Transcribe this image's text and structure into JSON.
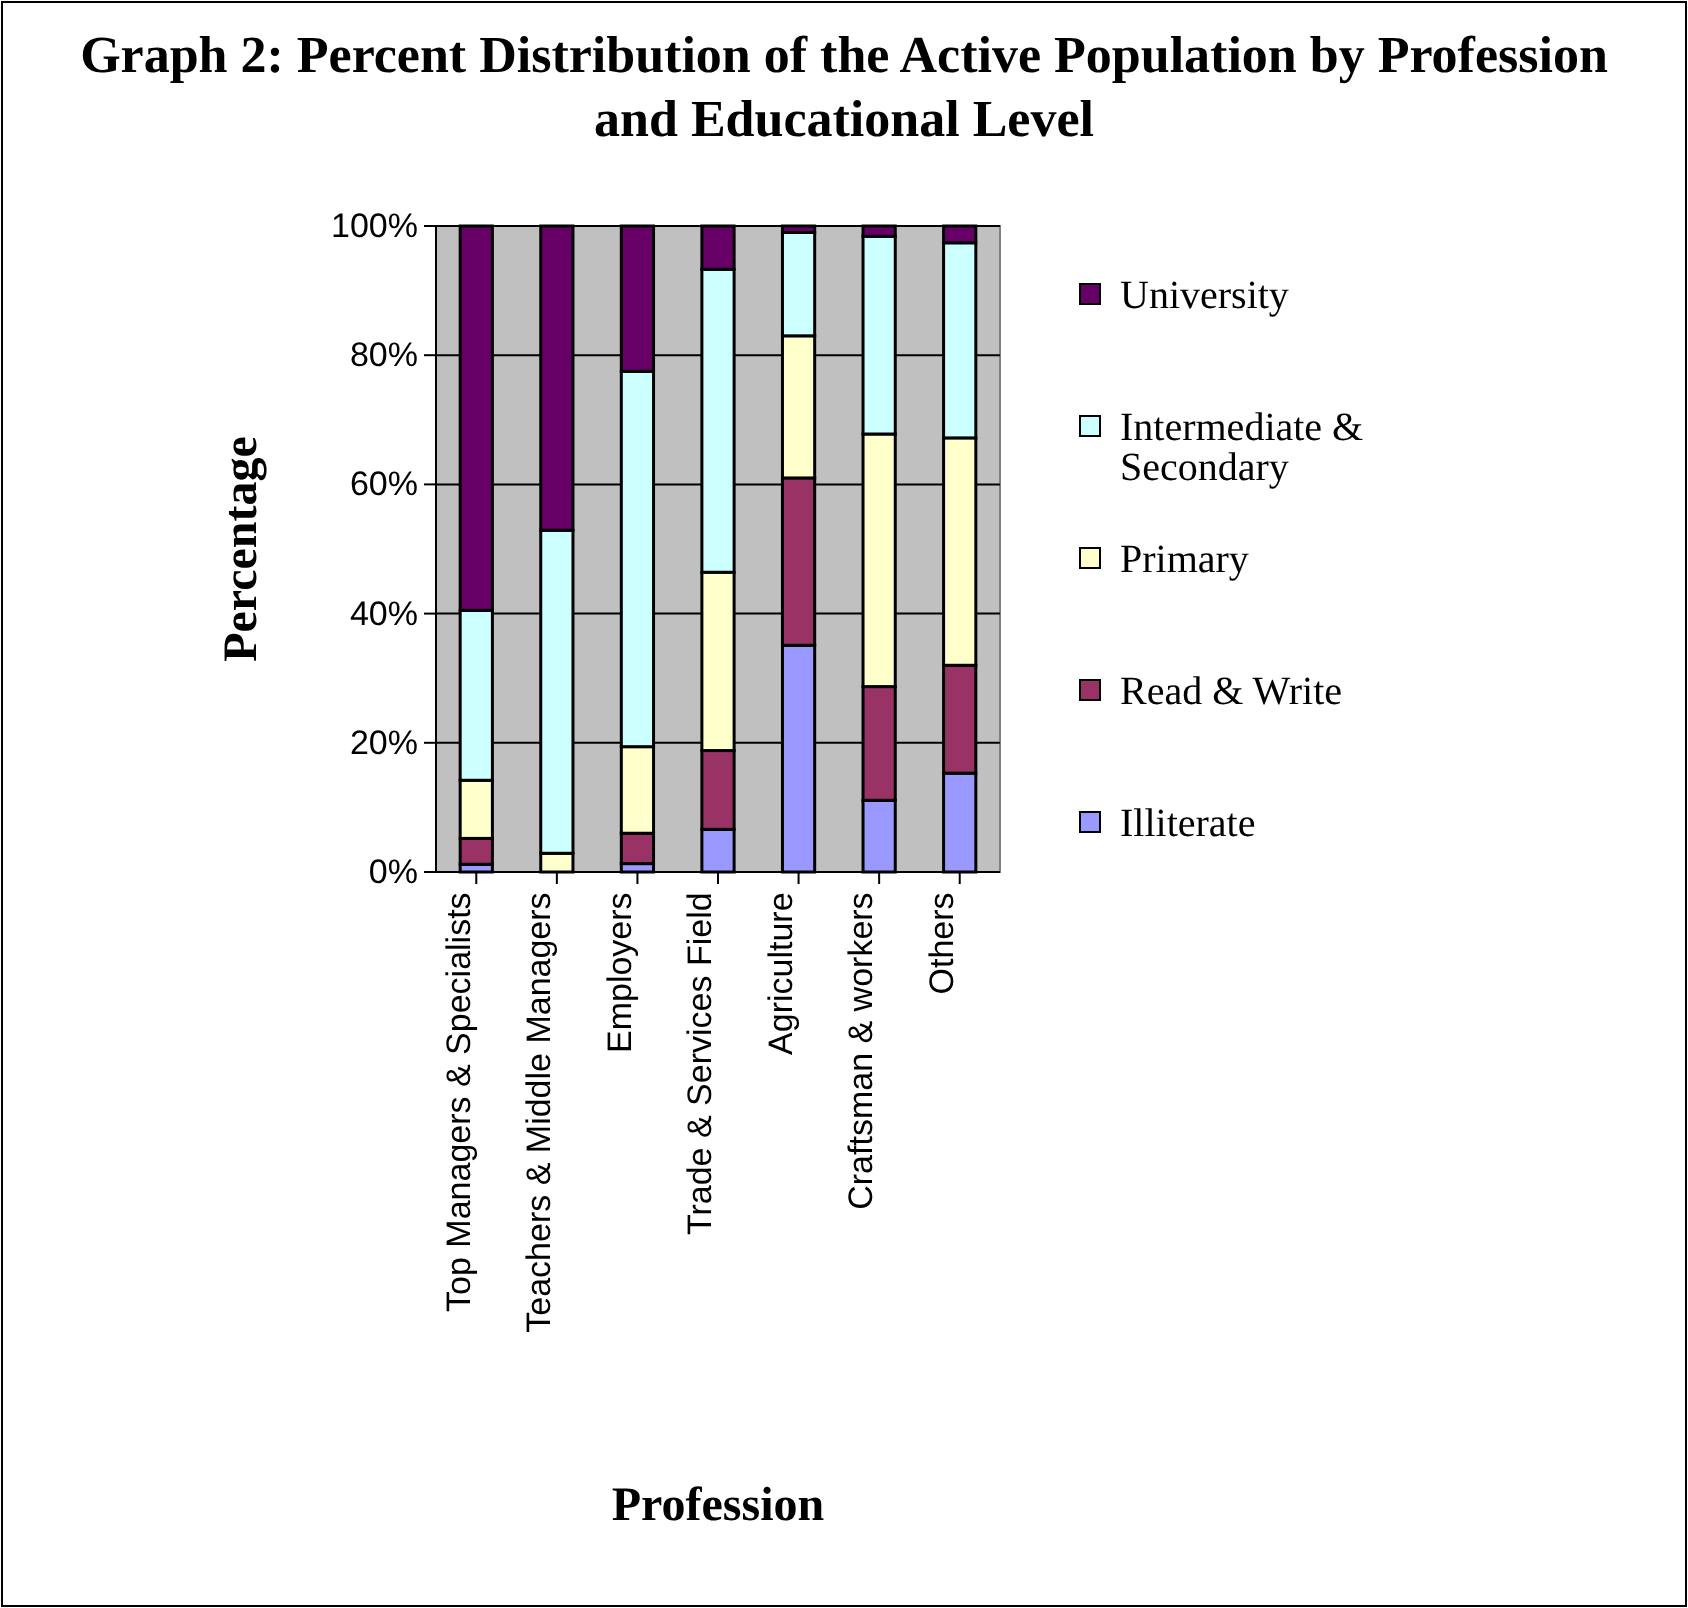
{
  "chart_data": {
    "type": "bar",
    "stacked": true,
    "title": "Graph 2: Percent Distribution of the Active Population by Profession and Educational Level",
    "xlabel": "Profession",
    "ylabel": "Percentage",
    "categories": [
      "Top Managers & Specialists",
      "Teachers & Middle Managers",
      "Employers",
      "Trade & Services Field",
      "Agriculture",
      "Craftsman & workers",
      "Others"
    ],
    "series": [
      {
        "name": "Illiterate",
        "color": "#9999ff",
        "values": [
          1.2,
          0,
          1.3,
          6.6,
          35.1,
          11.1,
          15.3
        ]
      },
      {
        "name": "Read & Write",
        "color": "#993366",
        "values": [
          4,
          0,
          4.7,
          12.2,
          25.9,
          17.6,
          16.7
        ]
      },
      {
        "name": "Primary",
        "color": "#ffffcc",
        "values": [
          9,
          2.9,
          13.4,
          27.6,
          22,
          39.1,
          35.2
        ]
      },
      {
        "name": "Intermediate & Secondary",
        "color": "#ccffff",
        "values": [
          26.3,
          50,
          58.1,
          46.9,
          16,
          30.6,
          30.2
        ]
      },
      {
        "name": "University",
        "color": "#660066",
        "values": [
          59.5,
          47.1,
          22.5,
          6.7,
          1,
          1.6,
          2.6
        ]
      }
    ],
    "ylim": [
      0,
      100
    ],
    "yticks": [
      {
        "value": 0,
        "label": "0%"
      },
      {
        "value": 20,
        "label": "20%"
      },
      {
        "value": 40,
        "label": "40%"
      },
      {
        "value": 60,
        "label": "60%"
      },
      {
        "value": 80,
        "label": "80%"
      },
      {
        "value": 100,
        "label": "100%"
      }
    ],
    "grid": "y",
    "legend": "right"
  }
}
